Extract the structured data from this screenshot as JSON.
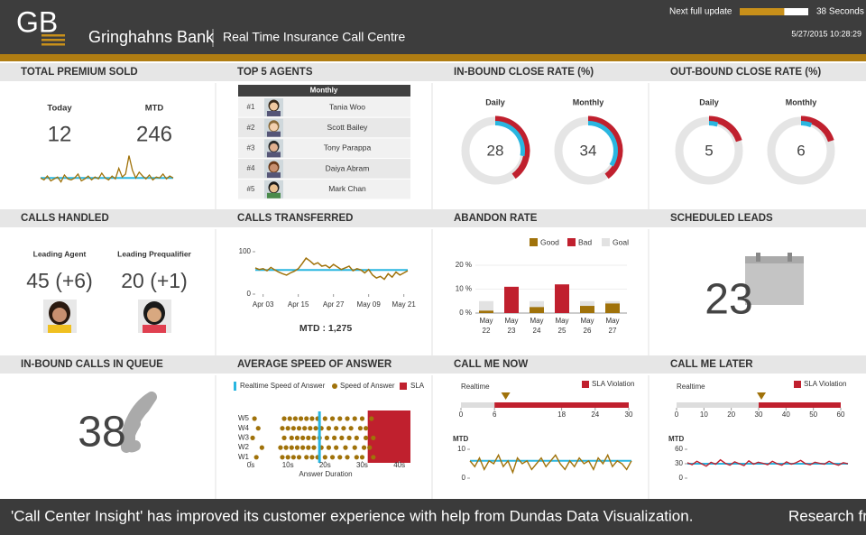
{
  "header": {
    "logo": "GB",
    "bank": "Gringhahns Bank",
    "subtitle": "Real Time Insurance Call Centre",
    "update_label": "Next full update",
    "update_progress": 0.65,
    "countdown": "38 Seconds",
    "timestamp": "5/27/2015 10:28:29"
  },
  "panels": {
    "premium": {
      "title": "TOTAL PREMIUM SOLD",
      "today_label": "Today",
      "today": 12,
      "mtd_label": "MTD",
      "mtd": 246,
      "trend": {
        "values": [
          10,
          8,
          12,
          7,
          9,
          11,
          6,
          13,
          9,
          8,
          10,
          14,
          7,
          9,
          12,
          8,
          11,
          9,
          15,
          10,
          8,
          12,
          9,
          20,
          11,
          14,
          33,
          18,
          10,
          16,
          12,
          9,
          13,
          8,
          11,
          10,
          14,
          9,
          12,
          10
        ],
        "goal": 10,
        "ylim": [
          0,
          40
        ],
        "color": "#a0720a",
        "goal_color": "#29b6e0"
      }
    },
    "agents": {
      "title": "TOP 5 AGENTS",
      "column": "Monthly",
      "rows": [
        {
          "rank": "#1",
          "name": "Tania Woo"
        },
        {
          "rank": "#2",
          "name": "Scott Bailey"
        },
        {
          "rank": "#3",
          "name": "Tony Parappa"
        },
        {
          "rank": "#4",
          "name": "Daiya Abram"
        },
        {
          "rank": "#5",
          "name": "Mark Chan"
        }
      ]
    },
    "inbound": {
      "title": "IN-BOUND CLOSE RATE (%)",
      "gauges": [
        {
          "label": "Daily",
          "value": 28,
          "goal": 40
        },
        {
          "label": "Monthly",
          "value": 34,
          "goal": 40
        }
      ]
    },
    "outbound": {
      "title": "OUT-BOUND CLOSE RATE (%)",
      "gauges": [
        {
          "label": "Daily",
          "value": 5,
          "goal": 20
        },
        {
          "label": "Monthly",
          "value": 6,
          "goal": 20
        }
      ]
    },
    "handled": {
      "title": "CALLS HANDLED",
      "items": [
        {
          "label": "Leading Agent",
          "value": "45 (+6)"
        },
        {
          "label": "Leading Prequalifier",
          "value": "20 (+1)"
        }
      ]
    },
    "transferred": {
      "title": "CALLS TRANSFERRED",
      "values": [
        62,
        58,
        60,
        55,
        63,
        57,
        52,
        48,
        45,
        50,
        54,
        60,
        72,
        85,
        78,
        70,
        74,
        66,
        68,
        62,
        70,
        64,
        58,
        62,
        66,
        55,
        60,
        57,
        50,
        58,
        45,
        38,
        42,
        35,
        48,
        40,
        52,
        45,
        50,
        55
      ],
      "goal": 57,
      "ylim": [
        0,
        100
      ],
      "yticks": [
        0,
        100
      ],
      "xlim": [
        0,
        39
      ],
      "xticks": [
        {
          "value": 2,
          "label": "Apr 03"
        },
        {
          "value": 11,
          "label": "Apr 15"
        },
        {
          "value": 20,
          "label": "Apr 27"
        },
        {
          "value": 29,
          "label": "May 09"
        },
        {
          "value": 38,
          "label": "May 21"
        }
      ],
      "mtd": "MTD : 1,275"
    },
    "abandon": {
      "title": "ABANDON RATE",
      "categories": [
        "May 22",
        "May 23",
        "May 24",
        "May 25",
        "May 26",
        "May 27"
      ],
      "series": [
        {
          "name": "Good",
          "color": "#a0720a",
          "values": [
            1,
            null,
            2.5,
            null,
            3,
            4
          ]
        },
        {
          "name": "Bad",
          "color": "#c0202e",
          "values": [
            null,
            11,
            null,
            12,
            null,
            null
          ]
        },
        {
          "name": "Goal",
          "color": "#e2e2e2",
          "values": [
            5,
            5,
            5,
            5,
            5,
            5
          ]
        }
      ],
      "ylim": [
        0,
        20
      ],
      "yticks": [
        {
          "value": 0,
          "label": "0 %"
        },
        {
          "value": 10,
          "label": "10 %"
        },
        {
          "value": 20,
          "label": "20 %"
        }
      ]
    },
    "leads": {
      "title": "SCHEDULED LEADS",
      "value": 23
    },
    "queue": {
      "title": "IN-BOUND CALLS IN QUEUE",
      "value": 38
    },
    "speed": {
      "title": "AVERAGE SPEED OF ANSWER",
      "realtime": {
        "name": "Realtime Speed of Answer",
        "value": 18.5,
        "color": "#29b6e0"
      },
      "dots": {
        "name": "Speed of Answer",
        "color": "#a0720a",
        "weeks": [
          {
            "label": "W5",
            "values": [
              1,
              9,
              10.5,
              12,
              13.5,
              15,
              16.5,
              18,
              20,
              22,
              24,
              26,
              28,
              30,
              32.5
            ]
          },
          {
            "label": "W4",
            "values": [
              2,
              8.5,
              10,
              11.5,
              13,
              14.5,
              16,
              17.5,
              19,
              21,
              23,
              25,
              27,
              29.5,
              31
            ]
          },
          {
            "label": "W3",
            "values": [
              0.5,
              9,
              11,
              12.5,
              14,
              15.5,
              17,
              18.5,
              20.5,
              22.5,
              24.5,
              26.5,
              28.5,
              31,
              33
            ]
          },
          {
            "label": "W2",
            "values": [
              3,
              8,
              9.5,
              11,
              12.5,
              14,
              15.5,
              17,
              19,
              21,
              23,
              25.5,
              28,
              30.5,
              32
            ]
          },
          {
            "label": "W1",
            "values": [
              1.5,
              8.5,
              10,
              11.5,
              13,
              15,
              16.5,
              18,
              20,
              22,
              24,
              26,
              28.5,
              30,
              33
            ]
          }
        ]
      },
      "sla": {
        "name": "SLA",
        "from": 31.5,
        "to": 43,
        "color": "#c0202e"
      },
      "xlim": [
        0,
        43
      ],
      "xticks": [
        {
          "value": 0,
          "label": "0s"
        },
        {
          "value": 10,
          "label": "10s"
        },
        {
          "value": 20,
          "label": "20s"
        },
        {
          "value": 30,
          "label": "30s"
        },
        {
          "value": 40,
          "label": "40s"
        }
      ],
      "xlabel": "Answer Duration"
    },
    "now": {
      "title": "CALL ME NOW",
      "realtime_label": "Realtime",
      "realtime": 8,
      "sla": {
        "name": "SLA Violation",
        "from": 6,
        "color": "#c0202e"
      },
      "xlim": [
        0,
        30
      ],
      "xticks": [
        0,
        6,
        18,
        24,
        30
      ],
      "mtd_label": "MTD",
      "mtd": {
        "values": [
          6,
          4,
          7,
          3,
          6,
          5,
          8,
          4,
          6,
          2,
          7,
          5,
          6,
          3,
          5,
          7,
          4,
          6,
          8,
          5,
          3,
          6,
          4,
          7,
          5,
          6,
          3,
          7,
          5,
          8,
          4,
          6,
          5,
          3,
          6
        ],
        "goal": 6,
        "ylim": [
          0,
          10
        ],
        "yticks": [
          0,
          10
        ]
      }
    },
    "later": {
      "title": "CALL ME LATER",
      "realtime_label": "Realtime",
      "realtime": 31,
      "sla": {
        "name": "SLA Violation",
        "from": 30,
        "color": "#c0202e"
      },
      "xlim": [
        0,
        60
      ],
      "xticks": [
        0,
        10,
        20,
        30,
        40,
        50,
        60
      ],
      "mtd_label": "MTD",
      "mtd": {
        "values": [
          32,
          28,
          35,
          30,
          25,
          33,
          29,
          38,
          31,
          27,
          34,
          30,
          26,
          36,
          29,
          33,
          31,
          28,
          35,
          30,
          27,
          34,
          29,
          32,
          37,
          30,
          28,
          33,
          31,
          29,
          35,
          30,
          27,
          32,
          30
        ],
        "goal": 30,
        "ylim": [
          0,
          60
        ],
        "yticks": [
          0,
          30,
          60
        ]
      }
    }
  },
  "ticker": [
    "'Call Center Insight' has improved its customer experience with help from Dundas Data Visualization.",
    "Research fr"
  ]
}
